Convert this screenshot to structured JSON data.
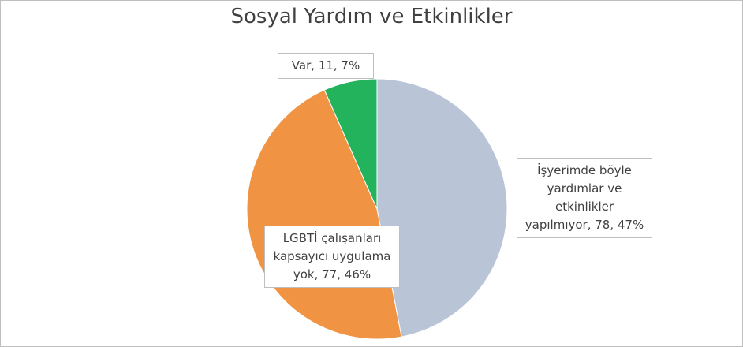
{
  "chart_data": {
    "type": "pie",
    "title": "Sosyal Yardım ve Etkinlikler",
    "values": [
      78,
      77,
      11
    ],
    "value_labels": [
      "İşyerimde böyle yardımlar ve etkinlikler yapılmıyor, 78, 47%",
      "LGBTİ çalışanları kapsayıcı uygulama yok, 77, 46%",
      "Var, 11, 7%"
    ],
    "colors": [
      "#b9c4d6",
      "#f09444",
      "#23b35d"
    ]
  }
}
